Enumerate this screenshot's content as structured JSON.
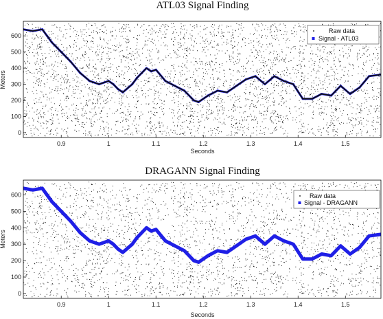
{
  "chart_data": [
    {
      "type": "scatter",
      "title": "ATL03 Signal Finding",
      "xlabel": "Seconds",
      "ylabel": "Meters",
      "xlim": [
        0.82,
        1.575
      ],
      "ylim": [
        -30,
        690
      ],
      "xticks": [
        "0.9",
        "1",
        "1.1",
        "1.2",
        "1.3",
        "1.4",
        "1.5"
      ],
      "yticks": [
        "0",
        "100",
        "200",
        "300",
        "400",
        "500",
        "600"
      ],
      "grid": false,
      "legend_position": "top-right",
      "colors": {
        "raw": "#000000",
        "signal": "#1f1fe6",
        "signal_line": "#111111"
      },
      "series": [
        {
          "name": "Raw data",
          "kind": "noise",
          "y_range": [
            -20,
            680
          ]
        },
        {
          "name": "Signal - ATL03",
          "x": [
            0.82,
            0.84,
            0.86,
            0.87,
            0.88,
            0.9,
            0.92,
            0.94,
            0.96,
            0.98,
            1.0,
            1.01,
            1.02,
            1.03,
            1.05,
            1.06,
            1.08,
            1.09,
            1.1,
            1.12,
            1.14,
            1.16,
            1.18,
            1.19,
            1.21,
            1.23,
            1.25,
            1.27,
            1.29,
            1.31,
            1.33,
            1.35,
            1.37,
            1.39,
            1.41,
            1.43,
            1.45,
            1.47,
            1.49,
            1.51,
            1.53,
            1.55,
            1.575
          ],
          "y": [
            640,
            630,
            640,
            600,
            560,
            500,
            440,
            370,
            320,
            300,
            320,
            300,
            270,
            250,
            300,
            340,
            400,
            380,
            390,
            320,
            290,
            260,
            200,
            190,
            230,
            260,
            250,
            290,
            330,
            350,
            300,
            350,
            320,
            300,
            210,
            210,
            240,
            230,
            290,
            240,
            280,
            350,
            360
          ]
        }
      ]
    },
    {
      "type": "scatter",
      "title": "DRAGANN Signal Finding",
      "xlabel": "Seconds",
      "ylabel": "Meters",
      "xlim": [
        0.82,
        1.575
      ],
      "ylim": [
        -30,
        690
      ],
      "xticks": [
        "0.9",
        "1",
        "1.1",
        "1.2",
        "1.3",
        "1.4",
        "1.5"
      ],
      "yticks": [
        "0",
        "100",
        "200",
        "300",
        "400",
        "500",
        "600"
      ],
      "grid": false,
      "legend_position": "top-right",
      "colors": {
        "raw": "#000000",
        "signal": "#1f1fe6"
      },
      "series": [
        {
          "name": "Raw data",
          "kind": "noise",
          "y_range": [
            -20,
            680
          ]
        },
        {
          "name": "Signal - DRAGANN",
          "x": [
            0.82,
            0.84,
            0.86,
            0.87,
            0.88,
            0.9,
            0.92,
            0.94,
            0.96,
            0.98,
            1.0,
            1.01,
            1.02,
            1.03,
            1.05,
            1.06,
            1.08,
            1.09,
            1.1,
            1.12,
            1.14,
            1.16,
            1.18,
            1.19,
            1.21,
            1.23,
            1.25,
            1.27,
            1.29,
            1.31,
            1.33,
            1.35,
            1.37,
            1.39,
            1.41,
            1.43,
            1.45,
            1.47,
            1.49,
            1.51,
            1.53,
            1.55,
            1.575
          ],
          "y": [
            640,
            630,
            640,
            600,
            560,
            500,
            440,
            370,
            320,
            300,
            320,
            300,
            270,
            250,
            300,
            340,
            400,
            380,
            390,
            320,
            290,
            260,
            200,
            190,
            230,
            260,
            250,
            290,
            330,
            350,
            300,
            350,
            320,
            300,
            210,
            210,
            240,
            230,
            290,
            240,
            280,
            350,
            360
          ]
        }
      ]
    }
  ]
}
